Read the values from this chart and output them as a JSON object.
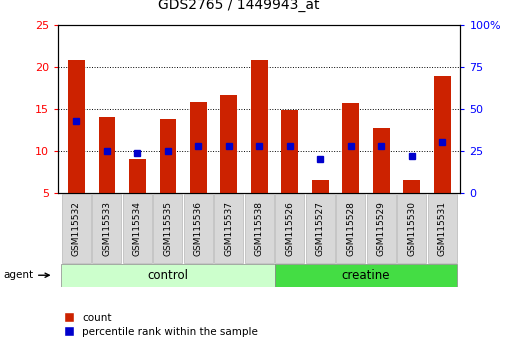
{
  "title": "GDS2765 / 1449943_at",
  "samples": [
    "GSM115532",
    "GSM115533",
    "GSM115534",
    "GSM115535",
    "GSM115536",
    "GSM115537",
    "GSM115538",
    "GSM115526",
    "GSM115527",
    "GSM115528",
    "GSM115529",
    "GSM115530",
    "GSM115531"
  ],
  "counts": [
    20.8,
    14.0,
    9.0,
    13.8,
    15.8,
    16.7,
    20.8,
    14.9,
    6.5,
    15.7,
    12.7,
    6.5,
    18.9
  ],
  "percentiles": [
    43,
    25,
    24,
    25,
    28,
    28,
    28,
    28,
    20,
    28,
    28,
    22,
    30
  ],
  "ymin": 5,
  "ymax": 25,
  "y2min": 0,
  "y2max": 100,
  "yticks": [
    5,
    10,
    15,
    20,
    25
  ],
  "y2ticks": [
    0,
    25,
    50,
    75,
    100
  ],
  "y2ticklabels": [
    "0",
    "25",
    "50",
    "75",
    "100%"
  ],
  "bar_color": "#cc2200",
  "marker_color": "#0000cc",
  "control_label": "control",
  "creatine_label": "creatine",
  "agent_label": "agent",
  "control_color": "#ccffcc",
  "creatine_color": "#44dd44",
  "n_control": 7,
  "n_creatine": 6,
  "legend_count": "count",
  "legend_pct": "percentile rank within the sample",
  "tick_bg_color": "#d8d8d8",
  "grid_lines": [
    10,
    15,
    20
  ],
  "fig_width": 5.06,
  "fig_height": 3.54
}
